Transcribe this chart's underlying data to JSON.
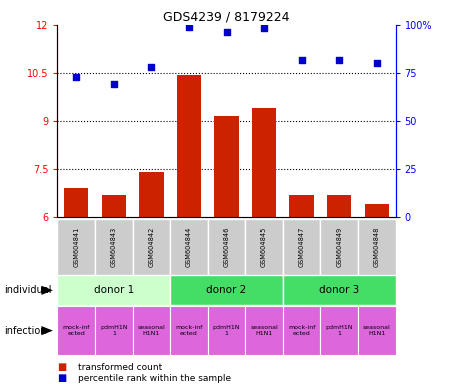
{
  "title": "GDS4239 / 8179224",
  "samples": [
    "GSM604841",
    "GSM604843",
    "GSM604842",
    "GSM604844",
    "GSM604846",
    "GSM604845",
    "GSM604847",
    "GSM604849",
    "GSM604848"
  ],
  "bar_values": [
    6.9,
    6.7,
    7.4,
    10.45,
    9.15,
    9.4,
    6.7,
    6.7,
    6.4
  ],
  "scatter_values": [
    73,
    69,
    78,
    99,
    96.5,
    98.5,
    82,
    82,
    80
  ],
  "ylim_left": [
    6,
    12
  ],
  "ylim_right": [
    0,
    100
  ],
  "yticks_left": [
    6,
    7.5,
    9,
    10.5,
    12
  ],
  "yticks_right": [
    0,
    25,
    50,
    75,
    100
  ],
  "donor_labels": [
    "donor 1",
    "donor 2",
    "donor 3"
  ],
  "donor_starts": [
    0,
    3,
    6
  ],
  "donor_ends": [
    3,
    6,
    9
  ],
  "donor_colors": [
    "#ccffcc",
    "#44dd66",
    "#44dd66"
  ],
  "infections": [
    "mock-inf\nected",
    "pdmH1N\n1",
    "seasonal\nH1N1",
    "mock-inf\nected",
    "pdmH1N\n1",
    "seasonal\nH1N1",
    "mock-inf\nected",
    "pdmH1N\n1",
    "seasonal\nH1N1"
  ],
  "infection_color": "#dd66dd",
  "bar_color": "#cc2200",
  "scatter_color": "#0000cc",
  "sample_box_color": "#cccccc",
  "background_color": "#ffffff"
}
